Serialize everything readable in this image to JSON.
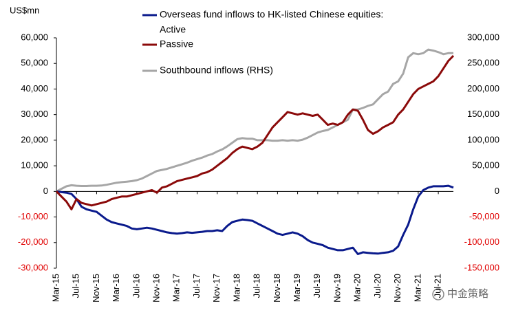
{
  "chart_data": {
    "type": "line",
    "y_label": "US$mn",
    "legend_title": "Overseas fund inflows to HK-listed Chinese equities:",
    "watermark": "中金策略",
    "negative_label_color": "#e00000",
    "categories": [
      "Mar-15",
      null,
      null,
      null,
      "Jul-15",
      null,
      null,
      null,
      "Nov-15",
      null,
      null,
      null,
      "Mar-16",
      null,
      null,
      null,
      "Jul-16",
      null,
      null,
      null,
      "Nov-16",
      null,
      null,
      null,
      "Mar-17",
      null,
      null,
      null,
      "Jul-17",
      null,
      null,
      null,
      "Nov-17",
      null,
      null,
      null,
      "Mar-18",
      null,
      null,
      null,
      "Jul-18",
      null,
      null,
      null,
      "Nov-18",
      null,
      null,
      null,
      "Mar-19",
      null,
      null,
      null,
      "Jul-19",
      null,
      null,
      null,
      "Nov-19",
      null,
      null,
      null,
      "Mar-20",
      null,
      null,
      null,
      "Jul-20",
      null,
      null,
      null,
      "Nov-20",
      null,
      null,
      null,
      "Mar-21",
      null,
      null,
      null,
      "Jul-21",
      null,
      null,
      null
    ],
    "series": [
      {
        "name": "Active",
        "color": "#0a1a8c",
        "values": [
          0,
          -300,
          -500,
          -1000,
          -3000,
          -6000,
          -7000,
          -7500,
          -8000,
          -9500,
          -11000,
          -12000,
          -12500,
          -13000,
          -13500,
          -14500,
          -14800,
          -14500,
          -14200,
          -14500,
          -15000,
          -15500,
          -16000,
          -16300,
          -16500,
          -16300,
          -16000,
          -16200,
          -16000,
          -15800,
          -15500,
          -15500,
          -15200,
          -15500,
          -13500,
          -12000,
          -11500,
          -11000,
          -11200,
          -11500,
          -12500,
          -13500,
          -14500,
          -15500,
          -16500,
          -17000,
          -16500,
          -16000,
          -16500,
          -17500,
          -19000,
          -20000,
          -20500,
          -21000,
          -22000,
          -22500,
          -23000,
          -23000,
          -22500,
          -22000,
          -24500,
          -23800,
          -24000,
          -24200,
          -24300,
          -24000,
          -23800,
          -23200,
          -21500,
          -17000,
          -13000,
          -7000,
          -2000,
          500,
          1500,
          2000,
          2000,
          2000,
          2200,
          1500
        ]
      },
      {
        "name": "Passive",
        "color": "#8b0a0a",
        "values": [
          0,
          -2000,
          -4000,
          -7000,
          -3000,
          -4500,
          -5000,
          -5500,
          -5000,
          -4500,
          -4000,
          -3000,
          -2500,
          -2000,
          -2000,
          -1500,
          -1000,
          -500,
          0,
          500,
          -500,
          1500,
          2000,
          3000,
          4000,
          4500,
          5000,
          5500,
          6000,
          7000,
          7500,
          8500,
          10000,
          11500,
          13000,
          15000,
          16500,
          17500,
          17000,
          16500,
          17500,
          19000,
          22000,
          25000,
          27000,
          29000,
          31000,
          30500,
          30000,
          30500,
          30000,
          29500,
          30000,
          28000,
          26000,
          26500,
          26000,
          27000,
          30000,
          32000,
          31500,
          28000,
          24000,
          22500,
          23500,
          25000,
          26000,
          27000,
          30000,
          32000,
          35000,
          38000,
          40000,
          41000,
          42000,
          43000,
          45000,
          48000,
          51000,
          53000
        ]
      },
      {
        "name": "Southbound inflows (RHS)",
        "color": "#a6a6a6",
        "axis": "y2",
        "values": [
          0,
          5000,
          10000,
          12000,
          11000,
          10500,
          10500,
          11000,
          11000,
          11500,
          13000,
          15000,
          17000,
          18000,
          19000,
          20000,
          22000,
          25000,
          30000,
          35000,
          40000,
          42000,
          44000,
          47000,
          50000,
          53000,
          56000,
          60000,
          63000,
          66000,
          70000,
          73000,
          78000,
          82000,
          88000,
          95000,
          102000,
          104000,
          103000,
          103000,
          100000,
          100000,
          100000,
          99000,
          99000,
          100000,
          99000,
          100000,
          99000,
          101000,
          105000,
          110000,
          115000,
          118000,
          120000,
          125000,
          130000,
          135000,
          140000,
          160000,
          160000,
          163000,
          167000,
          170000,
          180000,
          190000,
          195000,
          210000,
          215000,
          230000,
          262000,
          270000,
          268000,
          270000,
          277000,
          275000,
          272000,
          268000,
          270000,
          270000
        ]
      }
    ],
    "ylim": [
      -30000,
      60000
    ],
    "yticks": [
      {
        "value": -30000,
        "label": "-30,000"
      },
      {
        "value": -20000,
        "label": "-20,000"
      },
      {
        "value": -10000,
        "label": "-10,000"
      },
      0,
      {
        "value": 10000,
        "label": "10,000"
      },
      {
        "value": 20000,
        "label": "20,000"
      },
      {
        "value": 30000,
        "label": "30,000"
      },
      {
        "value": 40000,
        "label": "40,000"
      },
      {
        "value": 50000,
        "label": "50,000"
      },
      {
        "value": 60000,
        "label": "60,000"
      }
    ],
    "y2lim": [
      -150000,
      300000
    ],
    "y2ticks": [
      {
        "value": -150000,
        "label": "-150,000"
      },
      {
        "value": -100000,
        "label": "-100,000"
      },
      {
        "value": -50000,
        "label": "-50,000"
      },
      0,
      {
        "value": 50000,
        "label": "50,000"
      },
      {
        "value": 100000,
        "label": "100,000"
      },
      {
        "value": 150000,
        "label": "150,000"
      },
      {
        "value": 200000,
        "label": "200,000"
      },
      {
        "value": 250000,
        "label": "250,000"
      },
      {
        "value": 300000,
        "label": "300,000"
      }
    ]
  }
}
